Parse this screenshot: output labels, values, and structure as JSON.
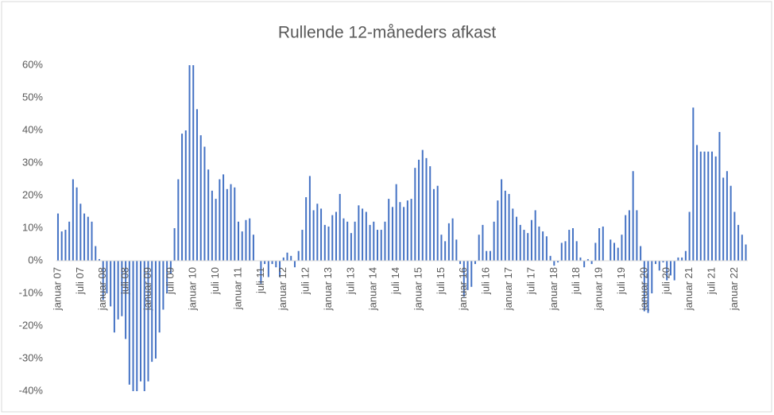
{
  "chart_data": {
    "type": "bar",
    "title": "Rullende 12-måneders afkast",
    "categories": [
      "januar 07",
      null,
      null,
      null,
      null,
      null,
      "juli 07",
      null,
      null,
      null,
      null,
      null,
      "januar 08",
      null,
      null,
      null,
      null,
      null,
      "juli 08",
      null,
      null,
      null,
      null,
      null,
      "januar 09",
      null,
      null,
      null,
      null,
      null,
      "juli 09",
      null,
      null,
      null,
      null,
      null,
      "januar 10",
      null,
      null,
      null,
      null,
      null,
      "juli 10",
      null,
      null,
      null,
      null,
      null,
      "januar 11",
      null,
      null,
      null,
      null,
      null,
      "juli 11",
      null,
      null,
      null,
      null,
      null,
      "januar 12",
      null,
      null,
      null,
      null,
      null,
      "juli 12",
      null,
      null,
      null,
      null,
      null,
      "januar 13",
      null,
      null,
      null,
      null,
      null,
      "juli 13",
      null,
      null,
      null,
      null,
      null,
      "januar 14",
      null,
      null,
      null,
      null,
      null,
      "juli 14",
      null,
      null,
      null,
      null,
      null,
      "januar 15",
      null,
      null,
      null,
      null,
      null,
      "juli 15",
      null,
      null,
      null,
      null,
      null,
      "januar 16",
      null,
      null,
      null,
      null,
      null,
      "juli 16",
      null,
      null,
      null,
      null,
      null,
      "januar 17",
      null,
      null,
      null,
      null,
      null,
      "juli 17",
      null,
      null,
      null,
      null,
      null,
      "januar 18",
      null,
      null,
      null,
      null,
      null,
      "juli 18",
      null,
      null,
      null,
      null,
      null,
      "januar 19",
      null,
      null,
      null,
      null,
      null,
      "juli 19",
      null,
      null,
      null,
      null,
      null,
      "januar 20",
      null,
      null,
      null,
      null,
      null,
      "juli 20",
      null,
      null,
      null,
      null,
      null,
      "januar 21",
      null,
      null,
      null,
      null,
      null,
      "juli 21",
      null,
      null,
      null,
      null,
      null,
      "januar 22",
      null,
      null,
      null
    ],
    "values": [
      14.5,
      9,
      9.5,
      12,
      25,
      22.5,
      17.5,
      14.5,
      13.5,
      12,
      4.5,
      0.5,
      -12,
      -10,
      -14,
      -22,
      -18,
      -17,
      -24,
      -38,
      -40,
      -40,
      -37,
      -40,
      -37,
      -31,
      -30,
      -22,
      -15,
      -10,
      -4,
      10,
      25,
      39,
      40,
      60,
      60,
      46.5,
      38.5,
      35,
      28,
      21.5,
      19,
      25,
      26.5,
      22,
      23.5,
      22.5,
      12,
      9,
      12.5,
      13,
      8,
      0,
      -7,
      -1,
      -5,
      -1,
      -2,
      -5,
      1,
      2.5,
      1.5,
      -2,
      3,
      9.5,
      19.5,
      26,
      15.5,
      17.5,
      16,
      11,
      10.5,
      14,
      15,
      20.5,
      13,
      12,
      8.5,
      12,
      17,
      16,
      15,
      11,
      12,
      9.5,
      9.5,
      12,
      19,
      16.5,
      23.5,
      18,
      16.5,
      18.5,
      19,
      28.5,
      31,
      34,
      31.5,
      29,
      22,
      23,
      8,
      6,
      11.5,
      13,
      6.5,
      -1,
      -11,
      -9,
      -8,
      -1,
      8,
      11,
      3,
      3,
      12,
      18.5,
      25,
      21.5,
      20.5,
      16,
      13.5,
      11,
      9.5,
      8.5,
      12.5,
      15.5,
      10.5,
      9,
      7.5,
      1.5,
      -1.5,
      -0.5,
      5.5,
      6,
      9.5,
      10,
      6,
      1,
      -2,
      0.5,
      -1,
      5.5,
      10,
      10.5,
      0,
      6.5,
      5.5,
      4,
      8,
      14,
      15.5,
      27.5,
      15.5,
      4.5,
      -15.5,
      -16,
      -10,
      -1,
      -3,
      -0.5,
      -6,
      -4.5,
      -6,
      1,
      1,
      3,
      15,
      47,
      35.5,
      33.5,
      33.5,
      33.5,
      33.5,
      32,
      39.5,
      25.5,
      27.5,
      23,
      15,
      11,
      8,
      5
    ],
    "color": "#4472c4",
    "ylim": [
      -40,
      60
    ],
    "yticks": [
      {
        "value": -40,
        "label": "-40%"
      },
      {
        "value": -30,
        "label": "-30%"
      },
      {
        "value": -20,
        "label": "-20%"
      },
      {
        "value": -10,
        "label": "-10%"
      },
      {
        "value": 0,
        "label": "0%"
      },
      {
        "value": 10,
        "label": "10%"
      },
      {
        "value": 20,
        "label": "20%"
      },
      {
        "value": 30,
        "label": "30%"
      },
      {
        "value": 40,
        "label": "40%"
      },
      {
        "value": 50,
        "label": "50%"
      },
      {
        "value": 60,
        "label": "60%"
      }
    ],
    "grid": false
  }
}
